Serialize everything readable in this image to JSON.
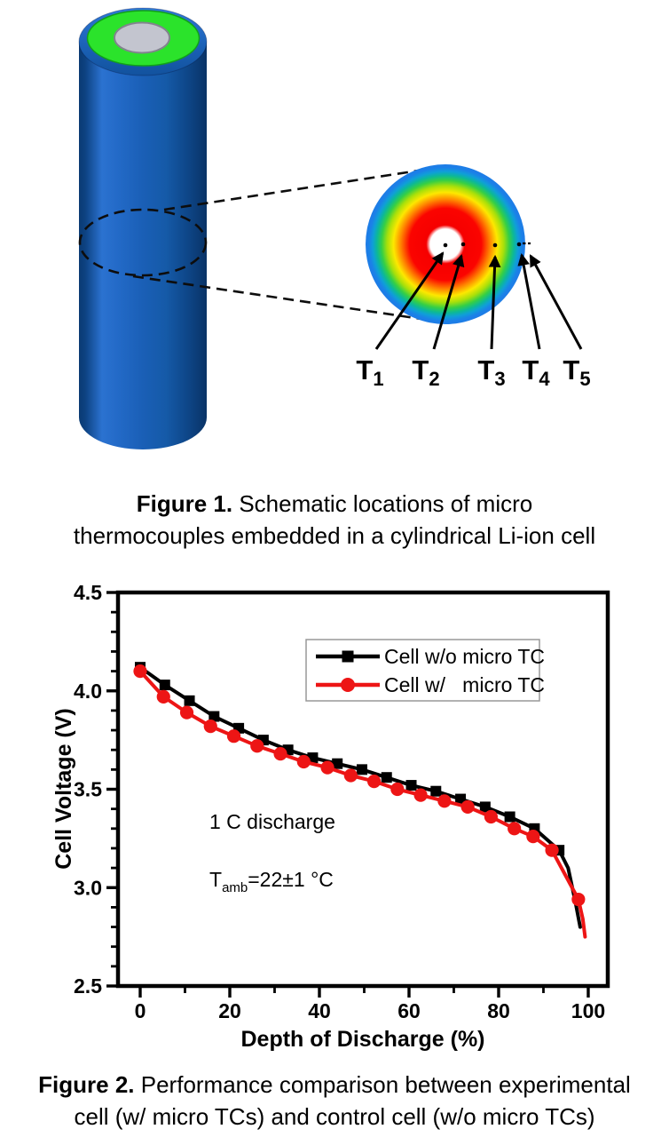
{
  "figure1": {
    "caption": {
      "bold": "Figure 1.",
      "line1_rest": " Schematic locations of micro",
      "line2": "thermocouples embedded in a cylindrical Li-ion cell"
    },
    "thermocouples": [
      {
        "base": "T",
        "sub": "1"
      },
      {
        "base": "T",
        "sub": "2"
      },
      {
        "base": "T",
        "sub": "3"
      },
      {
        "base": "T",
        "sub": "4"
      },
      {
        "base": "T",
        "sub": "5"
      }
    ],
    "colors": {
      "cell_body_blue": "#1A5FB6",
      "cell_top_green": "#2BE32B",
      "terminal_gray": "#C3C5CF",
      "cross_section_hot": "#FB0400",
      "cross_section_cold": "#1E7CE6"
    }
  },
  "figure2": {
    "caption": {
      "bold": "Figure 2.",
      "line1_rest": " Performance comparison between experimental",
      "line2": "cell (w/ micro TCs) and control cell (w/o micro TCs)"
    }
  },
  "chart_data": {
    "type": "line",
    "title": "",
    "xlabel": "Depth of Discharge (%)",
    "ylabel": "Cell Voltage (V)",
    "xlim": [
      -4.95,
      104.36
    ],
    "ylim": [
      2.5,
      4.5
    ],
    "x_ticks": [
      0,
      20,
      40,
      60,
      80,
      100
    ],
    "x_tick_labels": [
      "0",
      "20",
      "40",
      "60",
      "80",
      "100"
    ],
    "x_minor_ticks": [
      10,
      30,
      50,
      70,
      90
    ],
    "y_ticks": [
      4.5,
      4.0,
      3.5,
      3.0,
      2.5
    ],
    "y_tick_labels": [
      "4.5",
      "4.0",
      "3.5",
      "3.0",
      "2.5"
    ],
    "y_minor_step": 0.1,
    "grid": false,
    "legend": {
      "position": "upper-right-inside",
      "border_color": "#999999"
    },
    "annotations": [
      {
        "text": "1 C discharge"
      },
      {
        "base": "T",
        "sub": "amb",
        "rest": "=22±1 °C"
      }
    ],
    "series": [
      {
        "name": "Cell w/o micro TC",
        "color": "#000000",
        "marker": "square",
        "x": [
          0,
          5.5,
          11,
          16.5,
          22,
          27.5,
          33,
          38.5,
          44,
          49.5,
          55,
          60.5,
          66,
          71.5,
          77,
          82.5,
          88,
          93.5
        ],
        "y": [
          4.12,
          4.03,
          3.95,
          3.87,
          3.81,
          3.75,
          3.7,
          3.66,
          3.63,
          3.6,
          3.56,
          3.52,
          3.49,
          3.45,
          3.41,
          3.36,
          3.3,
          3.19
        ],
        "line_tail": [
          [
            95.5,
            3.1
          ],
          [
            97.2,
            2.92
          ],
          [
            98.2,
            2.8
          ]
        ]
      },
      {
        "name": "Cell w/   micro TC",
        "color": "#ED1515",
        "marker": "circle",
        "x": [
          0,
          5.2,
          10.4,
          15.7,
          20.9,
          26.1,
          31.3,
          36.5,
          41.8,
          47.0,
          52.2,
          57.4,
          62.6,
          67.9,
          73.1,
          78.3,
          83.5,
          87.7,
          91.9,
          97.8
        ],
        "y": [
          4.1,
          3.97,
          3.89,
          3.82,
          3.77,
          3.72,
          3.68,
          3.64,
          3.61,
          3.57,
          3.54,
          3.5,
          3.47,
          3.44,
          3.41,
          3.36,
          3.3,
          3.26,
          3.19,
          2.94
        ],
        "line_tail": [
          [
            98.8,
            2.84
          ],
          [
            99.3,
            2.75
          ]
        ]
      }
    ]
  }
}
